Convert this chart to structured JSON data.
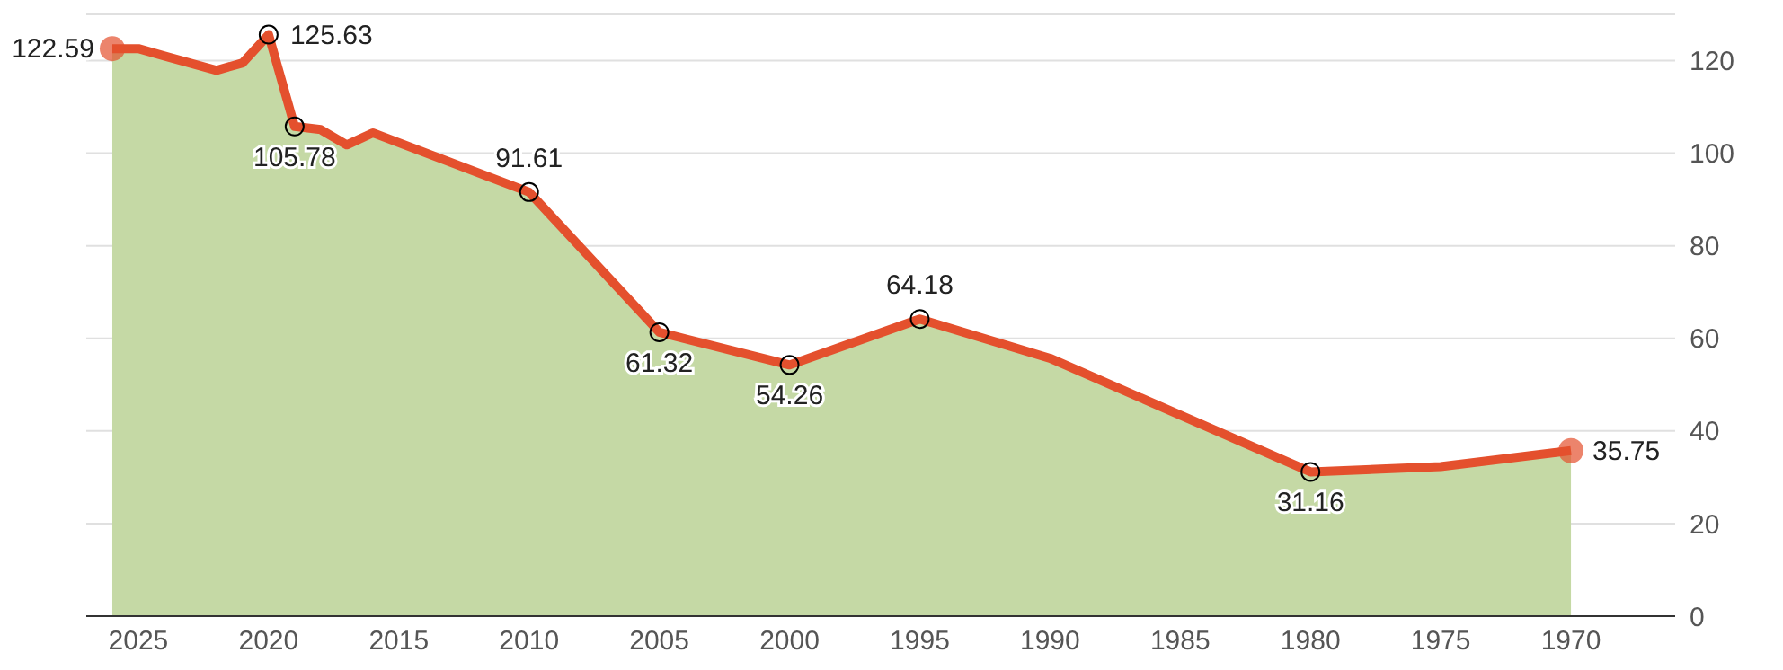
{
  "chart_data": {
    "type": "area",
    "x": [
      2026,
      2025,
      2024,
      2022,
      2021,
      2020,
      2019,
      2018,
      2017,
      2016,
      2010,
      2005,
      2000,
      1995,
      1990,
      1980,
      1975,
      1970
    ],
    "series": [
      {
        "color": "#e4502d",
        "values": [
          122.59,
          122.6,
          121.0,
          117.9,
          119.5,
          125.63,
          105.78,
          105.1,
          101.8,
          104.4,
          91.61,
          61.32,
          54.26,
          64.18,
          55.7,
          31.16,
          32.3,
          35.75
        ],
        "value_labels": [
          "122.59",
          null,
          null,
          null,
          null,
          "125.63",
          "105.78",
          null,
          null,
          null,
          "91.61",
          "61.32",
          "54.26",
          "64.18",
          null,
          "31.16",
          null,
          "35.75"
        ]
      }
    ],
    "xlim": [
      2027,
      1966
    ],
    "xticks": [
      2025,
      2020,
      2015,
      2010,
      2005,
      2000,
      1995,
      1990,
      1985,
      1980,
      1975,
      1970
    ],
    "ylim": [
      0,
      130
    ],
    "yticks": [
      0,
      20,
      40,
      60,
      80,
      100,
      120
    ],
    "grid": "y"
  }
}
